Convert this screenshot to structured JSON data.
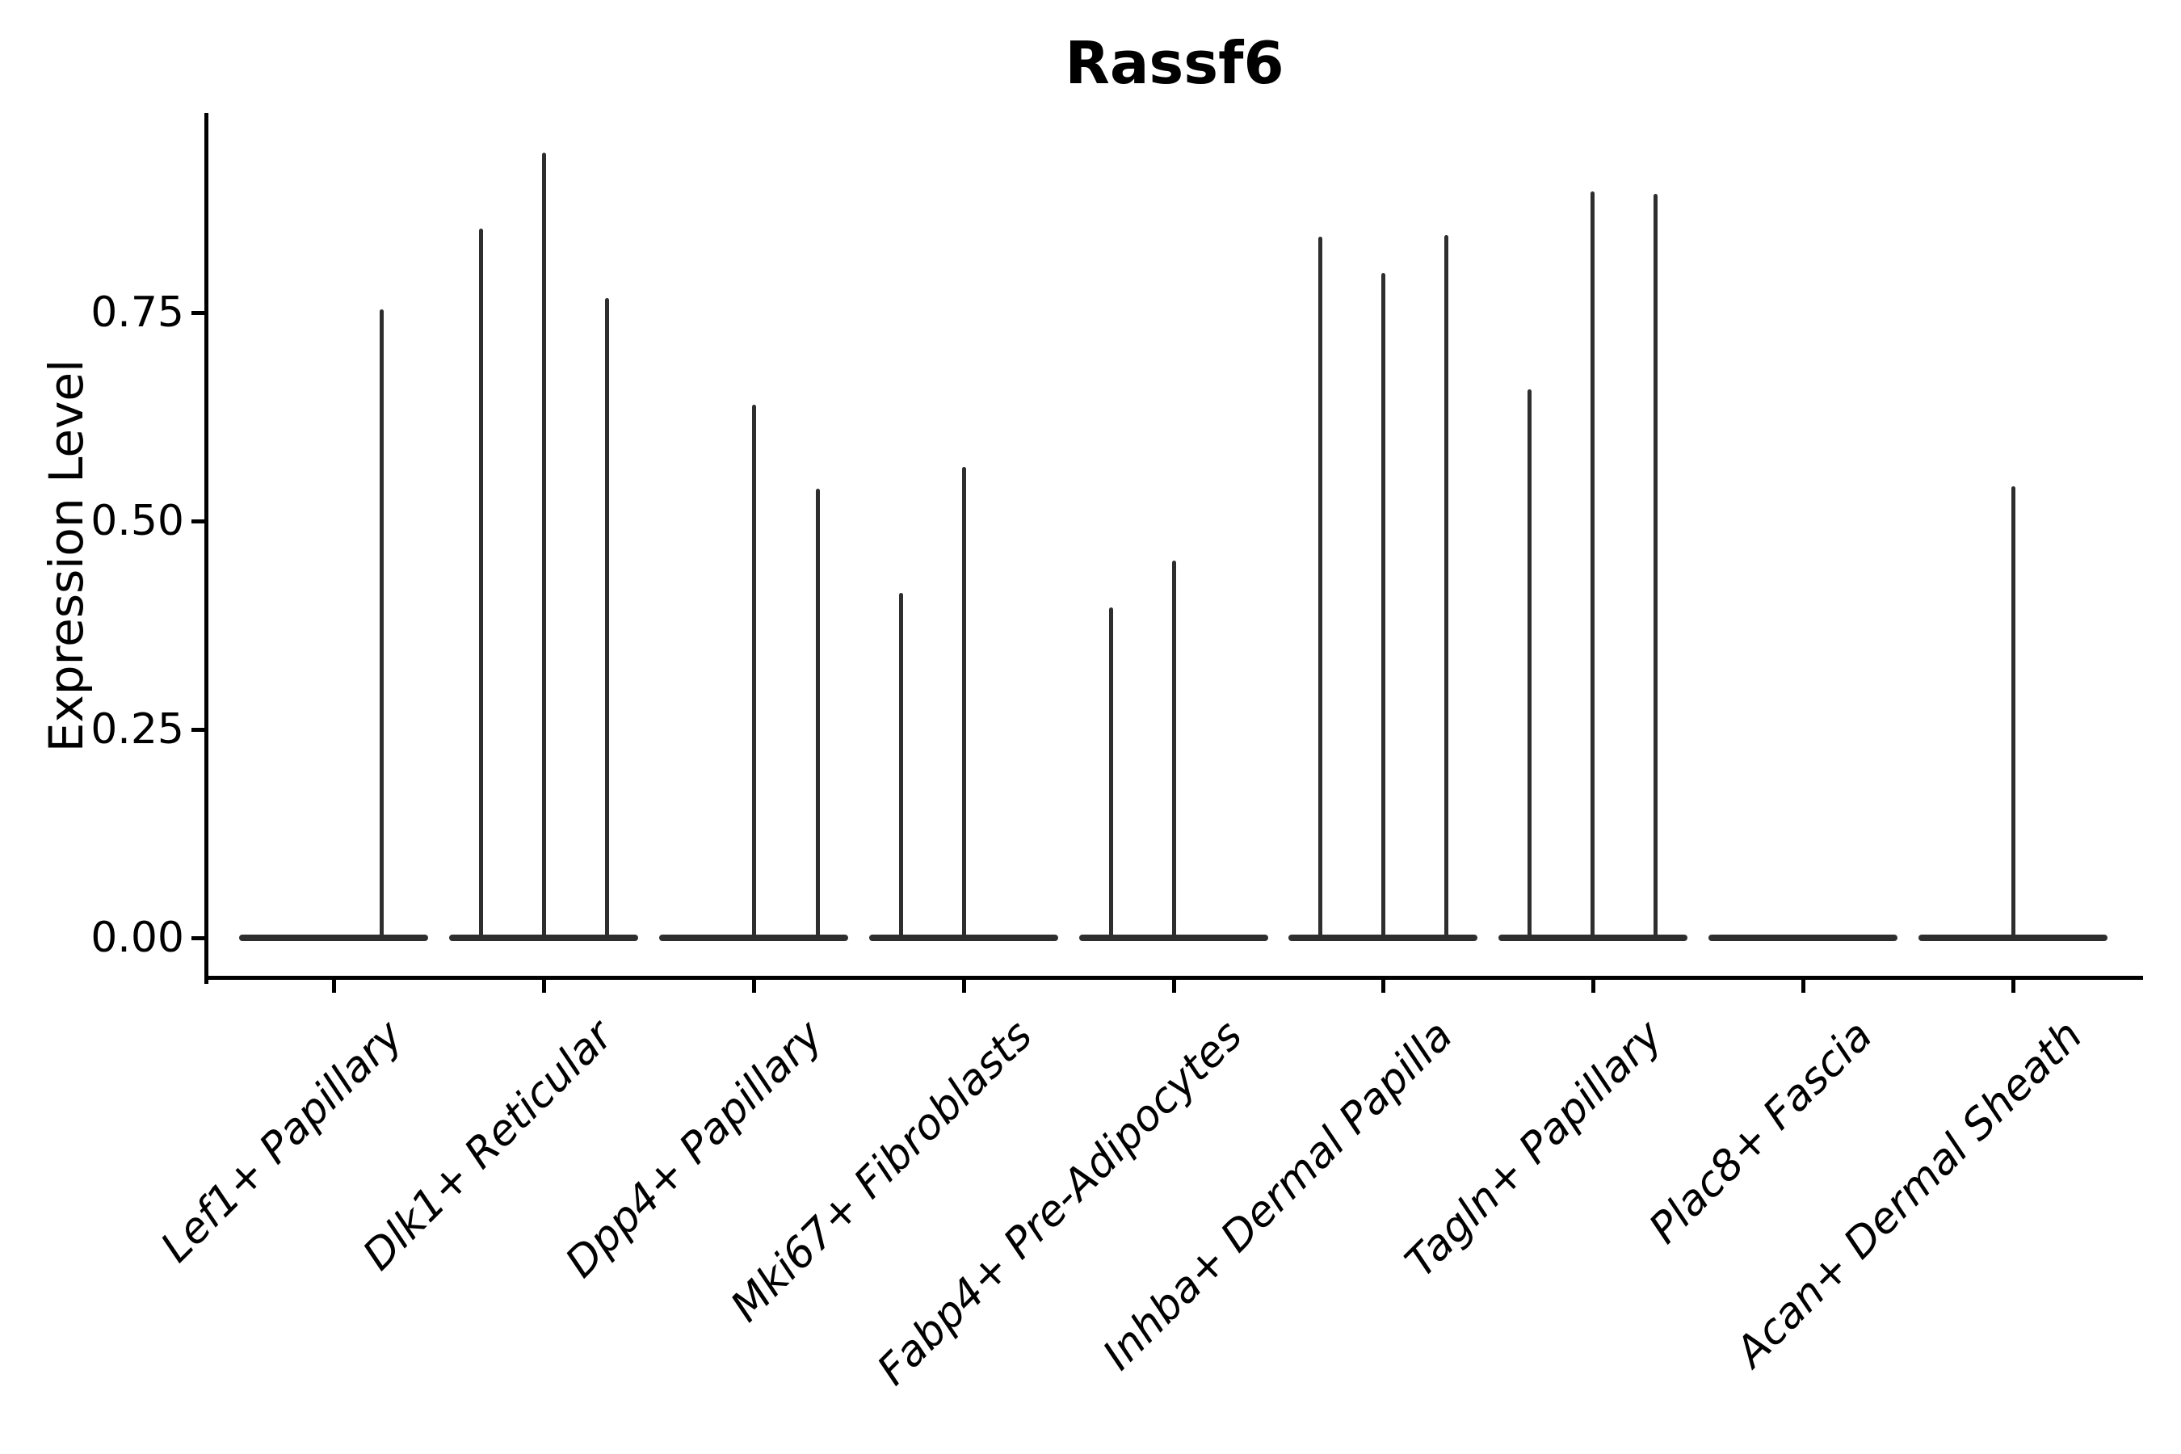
{
  "title": "Rassf6",
  "chart_data": {
    "type": "violin",
    "title": "Rassf6",
    "xlabel": "",
    "ylabel": "Expression Level",
    "ylim": [
      0,
      0.99
    ],
    "y_ticks": [
      0.0,
      0.25,
      0.5,
      0.75
    ],
    "y_tick_labels": [
      "0.00",
      "0.25",
      "0.50",
      "0.75"
    ],
    "grid": false,
    "legend_position": "none",
    "style_note": "Each category is a width-collapsed dark-gray violin: flat rounded bar at expression 0 plus thin vertical density spikes; left and bottom black spines only; x labels italic, rotated 45 degrees",
    "categories": [
      {
        "label": "Lef1+ Papillary",
        "spikes": [
          {
            "dx": 59,
            "max": 0.754
          }
        ]
      },
      {
        "label": "Dlk1+ Reticular",
        "spikes": [
          {
            "dx": -78,
            "max": 0.851
          },
          {
            "dx": 0,
            "max": 0.942
          },
          {
            "dx": 78,
            "max": 0.767
          }
        ]
      },
      {
        "label": "Dpp4+ Papillary",
        "spikes": [
          {
            "dx": 0,
            "max": 0.64
          },
          {
            "dx": 79,
            "max": 0.539
          }
        ]
      },
      {
        "label": "Mki67+ Fibroblasts",
        "spikes": [
          {
            "dx": -78,
            "max": 0.414
          },
          {
            "dx": 0,
            "max": 0.565
          }
        ]
      },
      {
        "label": "Fabp4+ Pre-Adipocytes",
        "spikes": [
          {
            "dx": -78,
            "max": 0.396
          },
          {
            "dx": 0,
            "max": 0.453
          }
        ]
      },
      {
        "label": "Inhba+ Dermal Papilla",
        "spikes": [
          {
            "dx": -78,
            "max": 0.841
          },
          {
            "dx": 0,
            "max": 0.797
          },
          {
            "dx": 78,
            "max": 0.843
          }
        ]
      },
      {
        "label": "Tagln+ Papillary",
        "spikes": [
          {
            "dx": -79,
            "max": 0.658
          },
          {
            "dx": -1,
            "max": 0.895
          },
          {
            "dx": 77,
            "max": 0.892
          }
        ]
      },
      {
        "label": "Plac8+ Fascia",
        "spikes": []
      },
      {
        "label": "Acan+ Dermal Sheath",
        "spikes": [
          {
            "dx": 0,
            "max": 0.542
          }
        ]
      }
    ],
    "colors": {
      "violin": "#2e2e2e",
      "axis": "#000000",
      "text": "#000000",
      "background": "#ffffff"
    }
  }
}
